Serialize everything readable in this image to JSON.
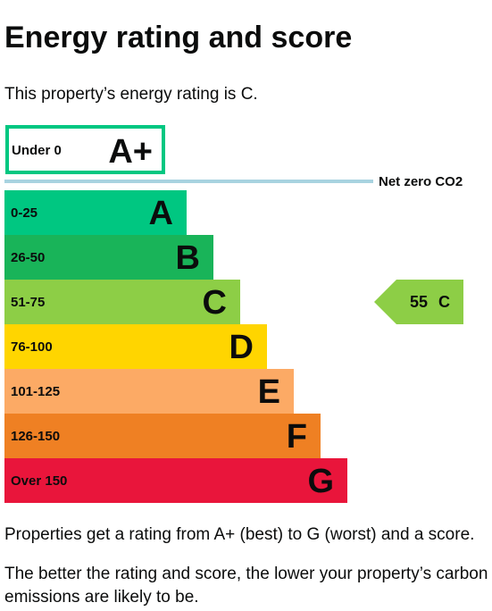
{
  "heading": "Energy rating and score",
  "intro": "This property’s energy rating is C.",
  "chart_data": {
    "type": "bar",
    "bands": [
      {
        "label": "Under 0",
        "letter": "A+",
        "min": null,
        "max": 0,
        "color": "#ffffff",
        "outline": "#00c781",
        "letter_color": "#0b0c0c"
      },
      {
        "label": "0-25",
        "letter": "A",
        "min": 0,
        "max": 25,
        "color": "#00c781",
        "letter_color": "#0b0c0c"
      },
      {
        "label": "26-50",
        "letter": "B",
        "min": 26,
        "max": 50,
        "color": "#19b459",
        "letter_color": "#0b0c0c"
      },
      {
        "label": "51-75",
        "letter": "C",
        "min": 51,
        "max": 75,
        "color": "#8dce46",
        "letter_color": "#0b0c0c"
      },
      {
        "label": "76-100",
        "letter": "D",
        "min": 76,
        "max": 100,
        "color": "#ffd500",
        "letter_color": "#0b0c0c"
      },
      {
        "label": "101-125",
        "letter": "E",
        "min": 101,
        "max": 125,
        "color": "#fcaa65",
        "letter_color": "#0b0c0c"
      },
      {
        "label": "126-150",
        "letter": "F",
        "min": 126,
        "max": 150,
        "color": "#ef8023",
        "letter_color": "#0b0c0c"
      },
      {
        "label": "Over 150",
        "letter": "G",
        "min": 151,
        "max": null,
        "color": "#e9153b",
        "letter_color": "#0b0c0c"
      }
    ],
    "net_zero_label": "Net zero CO2",
    "net_zero_color": "#a8d3e0",
    "current": {
      "score": 55,
      "score_text": "55",
      "letter": "C",
      "color": "#8dce46"
    }
  },
  "notes": [
    "Properties get a rating from A+ (best) to G (worst) and a score.",
    "The better the rating and score, the lower your property’s carbon emissions are likely to be."
  ]
}
